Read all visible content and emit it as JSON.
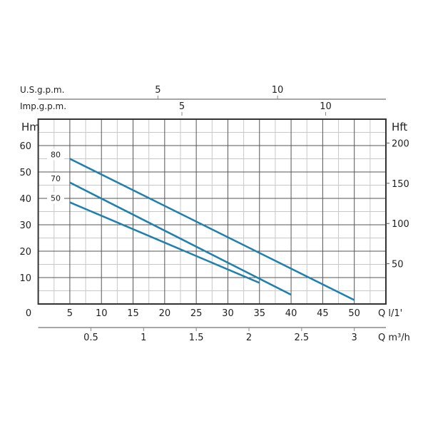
{
  "chart_data": {
    "type": "line",
    "xlabel": "Q l/1'",
    "ylabel_left": "Hm",
    "ylabel_right": "Hft",
    "xlim": [
      0,
      55
    ],
    "ylim": [
      0,
      70
    ],
    "grid": true,
    "x_ticks": [
      0,
      5,
      10,
      15,
      20,
      25,
      30,
      35,
      40,
      45,
      50
    ],
    "y_ticks": [
      10,
      20,
      30,
      40,
      50,
      60
    ],
    "right_axis": {
      "label": "Hft",
      "ticks": [
        50,
        100,
        150,
        200
      ]
    },
    "secondary_x_bottom": {
      "label": "Q m³/h",
      "ticks": [
        0.5,
        1,
        1.5,
        2,
        2.5,
        3
      ]
    },
    "secondary_x_top": [
      {
        "label": "U.S.g.p.m.",
        "ticks": [
          5,
          10
        ]
      },
      {
        "label": "Imp.g.p.m.",
        "ticks": [
          5,
          10
        ]
      }
    ],
    "line_color": "#1f7fae",
    "series": [
      {
        "name": "80",
        "x": [
          5,
          50
        ],
        "y": [
          55,
          1.5
        ]
      },
      {
        "name": "70",
        "x": [
          5,
          40
        ],
        "y": [
          46,
          3.5
        ]
      },
      {
        "name": "50",
        "x": [
          5,
          35
        ],
        "y": [
          38.5,
          8
        ]
      }
    ]
  }
}
